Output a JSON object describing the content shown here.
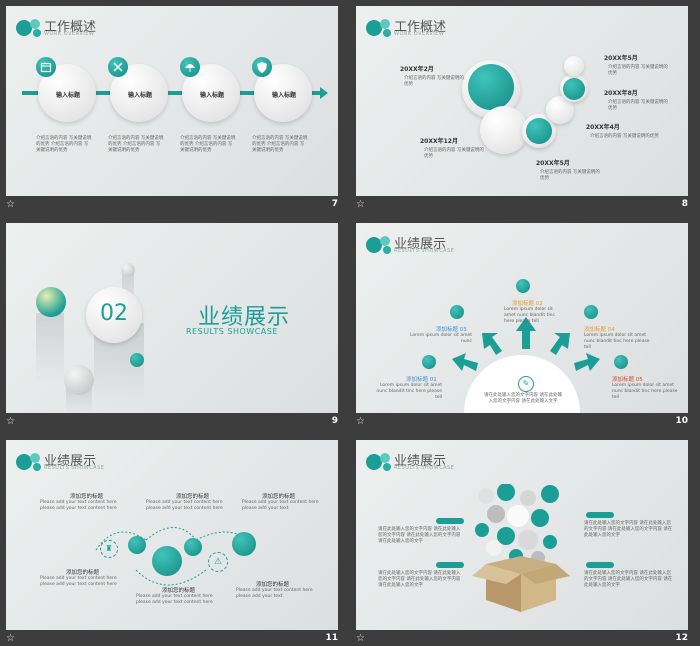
{
  "slides": [
    {
      "number": "7",
      "title": "工作概述",
      "subtitle": "WORK OVERVIEW",
      "steps": [
        {
          "label": "输入标题",
          "icon": "calendar-icon",
          "desc": "介绍言语的内容 写关键说明的优势 介绍言语的内容 写关键说明的优势"
        },
        {
          "label": "输入标题",
          "icon": "tools-icon",
          "desc": "介绍言语的内容 写关键说明的优势 介绍言语的内容 写关键说明的优势"
        },
        {
          "label": "输入标题",
          "icon": "umbrella-icon",
          "desc": "介绍言语的内容 写关键说明的优势 介绍言语的内容 写关键说明的优势"
        },
        {
          "label": "输入标题",
          "icon": "shield-icon",
          "desc": "介绍言语的内容 写关键说明的优势 介绍言语的内容 写关键说明的优势"
        }
      ]
    },
    {
      "number": "8",
      "title": "工作概述",
      "subtitle": "WORK OVERVIEW",
      "milestones": [
        {
          "date": "20XX年2月",
          "desc": "介绍言语的内容 写关键说明的优势"
        },
        {
          "date": "20XX年5月",
          "desc": "介绍言语的内容 写关键说明的优势"
        },
        {
          "date": "20XX年8月",
          "desc": "介绍言语的内容 写关键说明的优势"
        },
        {
          "date": "20XX年4月",
          "desc": "介绍言语的内容 写关键说明的优势"
        },
        {
          "date": "20XX年12月",
          "desc": "介绍言语的内容 写关键说明的优势"
        },
        {
          "date": "20XX年5月",
          "desc": "介绍言语的内容 写关键说明的优势"
        }
      ]
    },
    {
      "number": "9",
      "section_number": "02",
      "title": "业绩展示",
      "subtitle": "RESULTS SHOWCASE"
    },
    {
      "number": "10",
      "title": "业绩展示",
      "subtitle": "RESULTS SHOWCASE",
      "items": [
        {
          "label": "添加标题 01",
          "text": "Lorem ipsum dolor sit amet nunc blandit tinc here please tell"
        },
        {
          "label": "添加标题 02",
          "text": "Lorem ipsum dolor sit amet nunc blandit tinc here please tell"
        },
        {
          "label": "添加标题 03",
          "text": "Lorem ipsum dolor sit amet nunc"
        },
        {
          "label": "添加标题 04",
          "text": "Lorem ipsum dolor sit amet nunc blandit tinc here please tell"
        },
        {
          "label": "添加标题 05",
          "text": "Lorem ipsum dolor sit amet nunc blandit tinc here please tell"
        }
      ],
      "center_text": "请在此处输入您的文字内容 请在此处输入您的文字内容 请在此处输入文字"
    },
    {
      "number": "11",
      "title": "业绩展示",
      "subtitle": "RESULTS SHOWCASE",
      "labels": [
        {
          "label": "添加您的标题",
          "text": "Please add your text content here please add your text content here"
        },
        {
          "label": "添加您的标题",
          "text": "Please add your text content here please add your text content here"
        },
        {
          "label": "添加您的标题",
          "text": "Please add your text content here please add your text"
        },
        {
          "label": "添加您的标题",
          "text": "Please add your text content here please add your text content here"
        },
        {
          "label": "添加您的标题",
          "text": "Please add your text content here please add your text content here"
        },
        {
          "label": "添加您的标题",
          "text": "Please add your text content here please add your text"
        }
      ]
    },
    {
      "number": "12",
      "title": "业绩展示",
      "subtitle": "RESULTS SHOWCASE",
      "left_text_1": "请在此处输入您的文字内容 请在此处输入您的文字内容 请在此处输入您的文字内容 请在此处输入您的文字",
      "left_text_2": "请在此处输入您的文字内容 请在此处输入您的文字内容 请在此处输入您的文字内容 请在此处输入您的文字",
      "right_text_1": "请在此处输入您的文字内容 请在此处输入您的文字内容 请在此处输入您的文字内容 请在此处输入您的文字",
      "right_text_2": "请在此处输入您的文字内容 请在此处输入您的文字内容 请在此处输入您的文字内容 请在此处输入您的文字"
    }
  ],
  "footer_icon": "star-icon",
  "colors": {
    "teal": "#1a9e96",
    "background": "#3d3d3d",
    "orange": "#e89a2a",
    "red": "#d9442b",
    "blue": "#3a8fd0"
  }
}
